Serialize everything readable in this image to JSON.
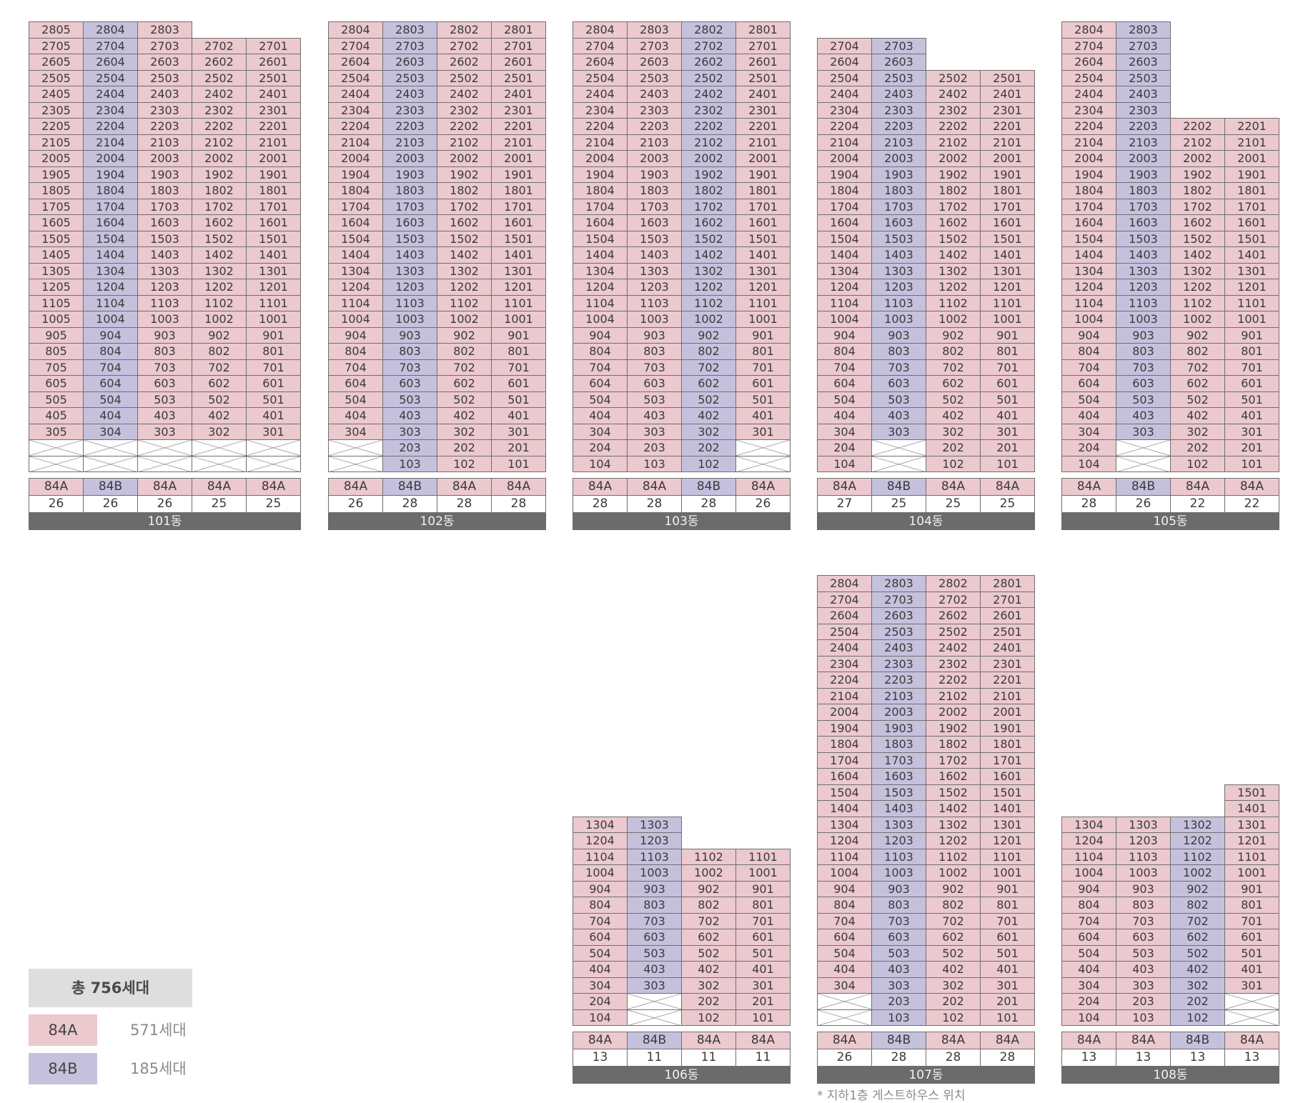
{
  "legend": {
    "total": "총 756세대",
    "types": [
      {
        "label": "84A",
        "count": "571세대",
        "color": "#ebc9cf"
      },
      {
        "label": "84B",
        "count": "185세대",
        "color": "#c5c1dd"
      }
    ]
  },
  "footnote": "* 지하1층 게스트하우스 위치",
  "buildings": [
    {
      "name": "101동",
      "columns": [
        {
          "type": "84A",
          "count": "26",
          "maxFloor": 28,
          "minFloor": 3,
          "pilotis": true
        },
        {
          "type": "84B",
          "count": "26",
          "maxFloor": 28,
          "minFloor": 3,
          "pilotis": true
        },
        {
          "type": "84A",
          "count": "26",
          "maxFloor": 28,
          "minFloor": 3,
          "pilotis": true
        },
        {
          "type": "84A",
          "count": "25",
          "maxFloor": 27,
          "minFloor": 3,
          "pilotis": true
        },
        {
          "type": "84A",
          "count": "25",
          "maxFloor": 27,
          "minFloor": 3,
          "pilotis": true
        }
      ]
    },
    {
      "name": "102동",
      "columns": [
        {
          "type": "84A",
          "count": "26",
          "maxFloor": 28,
          "minFloor": 3,
          "pilotis": true
        },
        {
          "type": "84B",
          "count": "28",
          "maxFloor": 28,
          "minFloor": 1,
          "pilotis": false
        },
        {
          "type": "84A",
          "count": "28",
          "maxFloor": 28,
          "minFloor": 1,
          "pilotis": false
        },
        {
          "type": "84A",
          "count": "28",
          "maxFloor": 28,
          "minFloor": 1,
          "pilotis": false
        }
      ]
    },
    {
      "name": "103동",
      "columns": [
        {
          "type": "84A",
          "count": "28",
          "maxFloor": 28,
          "minFloor": 1,
          "pilotis": false
        },
        {
          "type": "84A",
          "count": "28",
          "maxFloor": 28,
          "minFloor": 1,
          "pilotis": false
        },
        {
          "type": "84B",
          "count": "28",
          "maxFloor": 28,
          "minFloor": 1,
          "pilotis": false
        },
        {
          "type": "84A",
          "count": "26",
          "maxFloor": 28,
          "minFloor": 3,
          "pilotis": true
        }
      ]
    },
    {
      "name": "104동",
      "columns": [
        {
          "type": "84A",
          "count": "27",
          "maxFloor": 27,
          "minFloor": 1,
          "pilotis": false
        },
        {
          "type": "84B",
          "count": "25",
          "maxFloor": 27,
          "minFloor": 3,
          "pilotis": true
        },
        {
          "type": "84A",
          "count": "25",
          "maxFloor": 25,
          "minFloor": 1,
          "pilotis": false
        },
        {
          "type": "84A",
          "count": "25",
          "maxFloor": 25,
          "minFloor": 1,
          "pilotis": false
        }
      ]
    },
    {
      "name": "105동",
      "columns": [
        {
          "type": "84A",
          "count": "28",
          "maxFloor": 28,
          "minFloor": 1,
          "pilotis": false
        },
        {
          "type": "84B",
          "count": "26",
          "maxFloor": 28,
          "minFloor": 3,
          "pilotis": true
        },
        {
          "type": "84A",
          "count": "22",
          "maxFloor": 22,
          "minFloor": 1,
          "pilotis": false
        },
        {
          "type": "84A",
          "count": "22",
          "maxFloor": 22,
          "minFloor": 1,
          "pilotis": false
        }
      ]
    },
    {
      "name": "106동",
      "columns": [
        {
          "type": "84A",
          "count": "13",
          "maxFloor": 13,
          "minFloor": 1,
          "pilotis": false
        },
        {
          "type": "84B",
          "count": "11",
          "maxFloor": 13,
          "minFloor": 3,
          "pilotis": true
        },
        {
          "type": "84A",
          "count": "11",
          "maxFloor": 11,
          "minFloor": 1,
          "pilotis": false
        },
        {
          "type": "84A",
          "count": "11",
          "maxFloor": 11,
          "minFloor": 1,
          "pilotis": false
        }
      ]
    },
    {
      "name": "107동",
      "columns": [
        {
          "type": "84A",
          "count": "26",
          "maxFloor": 28,
          "minFloor": 3,
          "pilotis": true
        },
        {
          "type": "84B",
          "count": "28",
          "maxFloor": 28,
          "minFloor": 1,
          "pilotis": false
        },
        {
          "type": "84A",
          "count": "28",
          "maxFloor": 28,
          "minFloor": 1,
          "pilotis": false
        },
        {
          "type": "84A",
          "count": "28",
          "maxFloor": 28,
          "minFloor": 1,
          "pilotis": false
        }
      ]
    },
    {
      "name": "108동",
      "columns": [
        {
          "type": "84A",
          "count": "13",
          "maxFloor": 13,
          "minFloor": 1,
          "pilotis": false
        },
        {
          "type": "84A",
          "count": "13",
          "maxFloor": 13,
          "minFloor": 1,
          "pilotis": false
        },
        {
          "type": "84B",
          "count": "13",
          "maxFloor": 13,
          "minFloor": 1,
          "pilotis": false
        },
        {
          "type": "84A",
          "count": "13",
          "maxFloor": 15,
          "minFloor": 3,
          "pilotis": true
        }
      ]
    }
  ]
}
